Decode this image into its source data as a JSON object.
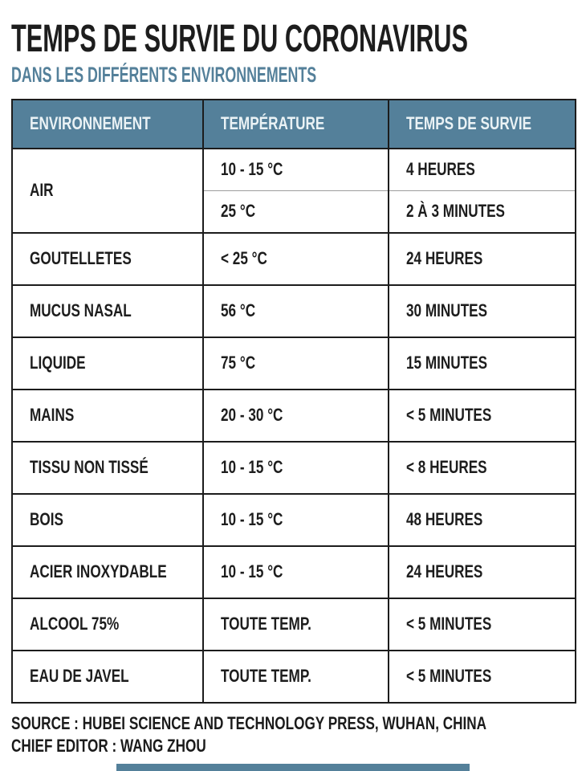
{
  "title": "TEMPS DE SURVIE DU CORONAVIRUS",
  "subtitle": "DANS LES DIFFÉRENTS ENVIRONNEMENTS",
  "colors": {
    "accent_teal": "#54809a",
    "border_dark": "#1c1c1c",
    "header_text": "#eaf2f5",
    "body_text": "#1d1d1d",
    "subrow_divider": "#9c9c9c",
    "background": "#ffffff"
  },
  "table": {
    "headers": [
      "ENVIRONNEMENT",
      "TEMPÉRATURE",
      "TEMPS DE SURVIE"
    ],
    "rows": [
      {
        "env": "AIR",
        "sub": [
          {
            "temp": "10 - 15 °C",
            "survival": "4 HEURES"
          },
          {
            "temp": "25 °C",
            "survival": "2 À 3 MINUTES"
          }
        ]
      },
      {
        "env": "GOUTELLETES",
        "temp": "< 25 °C",
        "survival": "24 HEURES"
      },
      {
        "env": "MUCUS NASAL",
        "temp": "56 °C",
        "survival": "30 MINUTES"
      },
      {
        "env": "LIQUIDE",
        "temp": "75 °C",
        "survival": "15 MINUTES"
      },
      {
        "env": "MAINS",
        "temp": "20 - 30 °C",
        "survival": "< 5 MINUTES"
      },
      {
        "env": "TISSU NON TISSÉ",
        "temp": "10 - 15 °C",
        "survival": "< 8 HEURES"
      },
      {
        "env": "BOIS",
        "temp": "10 - 15 °C",
        "survival": "48 HEURES"
      },
      {
        "env": "ACIER INOXYDABLE",
        "temp": "10 - 15 °C",
        "survival": "24 HEURES"
      },
      {
        "env": "ALCOOL 75%",
        "temp": "TOUTE TEMP.",
        "survival": "< 5 MINUTES"
      },
      {
        "env": "EAU DE JAVEL",
        "temp": "TOUTE TEMP.",
        "survival": "< 5 MINUTES"
      }
    ]
  },
  "footer": {
    "source_line": "SOURCE :  HUBEI SCIENCE AND TECHNOLOGY PRESS, WUHAN, CHINA",
    "editor_line": "CHIEF EDITOR : WANG ZHOU"
  }
}
